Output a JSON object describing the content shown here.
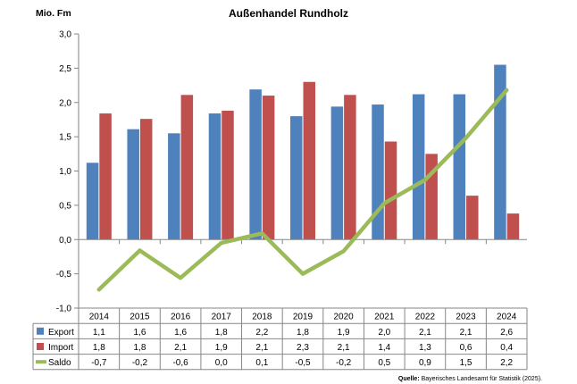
{
  "chart_data": {
    "type": "bar",
    "title": "Außenhandel Rundholz",
    "ylabel": "Mio. Fm",
    "ylim": [
      -1.0,
      3.0
    ],
    "yticks": [
      "-1,0",
      "-0,5",
      "0,0",
      "0,5",
      "1,0",
      "1,5",
      "2,0",
      "2,5",
      "3,0"
    ],
    "categories": [
      "2014",
      "2015",
      "2016",
      "2017",
      "2018",
      "2019",
      "2020",
      "2021",
      "2022",
      "2023",
      "2024"
    ],
    "series": [
      {
        "name": "Export",
        "type": "bar",
        "color": "#4F81BD",
        "values": [
          1.12,
          1.61,
          1.55,
          1.84,
          2.19,
          1.8,
          1.94,
          1.97,
          2.12,
          2.12,
          2.55
        ],
        "labels": [
          "1,1",
          "1,6",
          "1,6",
          "1,8",
          "2,2",
          "1,8",
          "1,9",
          "2,0",
          "2,1",
          "2,1",
          "2,6"
        ]
      },
      {
        "name": "Import",
        "type": "bar",
        "color": "#C0504D",
        "values": [
          1.84,
          1.76,
          2.11,
          1.88,
          2.1,
          2.3,
          2.11,
          1.43,
          1.25,
          0.64,
          0.38
        ],
        "labels": [
          "1,8",
          "1,8",
          "2,1",
          "1,9",
          "2,1",
          "2,3",
          "2,1",
          "1,4",
          "1,3",
          "0,6",
          "0,4"
        ]
      },
      {
        "name": "Saldo",
        "type": "line",
        "color": "#9BBB59",
        "values": [
          -0.73,
          -0.16,
          -0.56,
          -0.05,
          0.09,
          -0.5,
          -0.17,
          0.53,
          0.87,
          1.48,
          2.18
        ],
        "labels": [
          "-0,7",
          "-0,2",
          "-0,6",
          "0,0",
          "0,1",
          "-0,5",
          "-0,2",
          "0,5",
          "0,9",
          "1,5",
          "2,2"
        ]
      }
    ],
    "legend": "data-table",
    "grid": false
  },
  "source": {
    "label": "Quelle:",
    "text": " Bayerisches Landesamt für Statistik (2025)."
  }
}
